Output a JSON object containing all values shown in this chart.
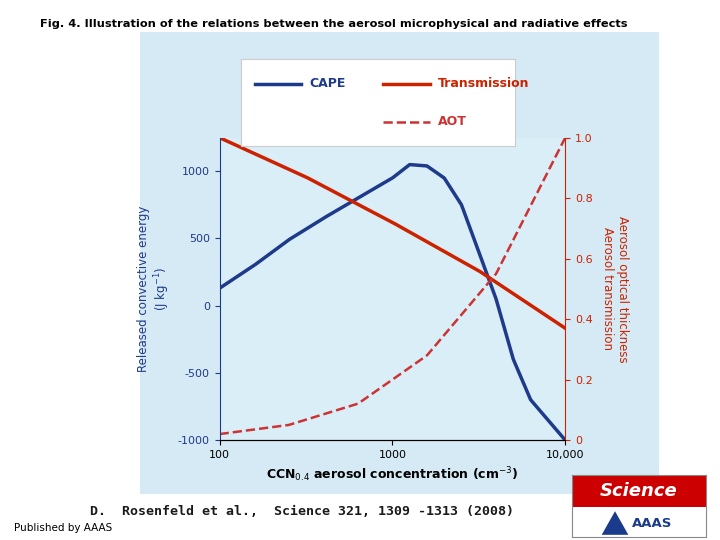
{
  "title": "Fig. 4. Illustration of the relations between the aerosol microphysical and radiative effects",
  "citation": "D.  Rosenfeld et al.,  Science 321, 1309 -1313 (2008)",
  "published_by": "Published by AAAS",
  "outer_bg_color": "#d6eaf5",
  "plot_bg_color": "#daeef8",
  "xlabel": "CCN$_{0.4}$ aerosol concentration (cm$^{-3}$)",
  "ylabel_left": "Released convective energy\n(J kg$^{-1}$)",
  "ylabel_right": "Aerosol optical thickness\nAerosol transmission",
  "left_ylim": [
    -1000,
    1250
  ],
  "right_ylim": [
    0,
    1.0
  ],
  "left_yticks": [
    -1000,
    -500,
    0,
    500,
    1000
  ],
  "right_yticks": [
    0,
    0.2,
    0.4,
    0.6,
    0.8,
    1.0
  ],
  "xticks": [
    100,
    1000,
    10000
  ],
  "xticklabels": [
    "100",
    "1000",
    "10,000"
  ],
  "cape_color": "#1e3a8a",
  "transmission_color": "#cc2200",
  "aot_color": "#cc3333",
  "science_red": "#cc0000",
  "aaas_blue": "#1a3a8c",
  "cape_key": [
    0.0,
    0.1,
    0.2,
    0.3,
    0.4,
    0.5,
    0.55,
    0.6,
    0.65,
    0.7,
    0.75,
    0.8,
    0.85,
    0.9,
    1.0
  ],
  "cape_val": [
    130,
    300,
    490,
    650,
    800,
    950,
    1050,
    1040,
    950,
    750,
    400,
    50,
    -400,
    -700,
    -1000
  ],
  "trans_key": [
    0.0,
    0.25,
    0.5,
    0.75,
    1.0
  ],
  "trans_val": [
    1.0,
    0.87,
    0.72,
    0.56,
    0.37
  ],
  "aot_key": [
    0.0,
    0.2,
    0.4,
    0.6,
    0.8,
    1.0
  ],
  "aot_val": [
    0.02,
    0.05,
    0.12,
    0.28,
    0.55,
    1.0
  ]
}
